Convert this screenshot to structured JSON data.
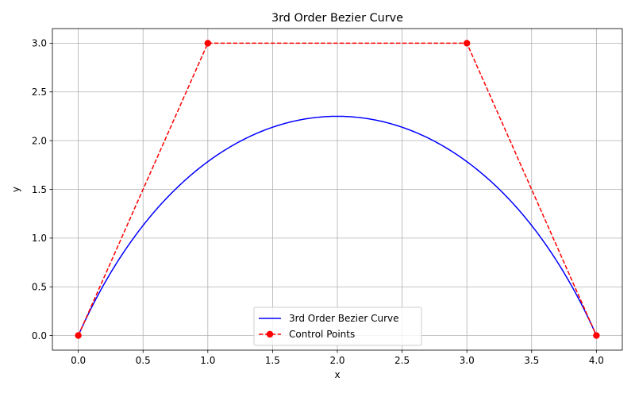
{
  "chart_data": {
    "type": "line",
    "title": "3rd Order Bezier Curve",
    "xlabel": "x",
    "ylabel": "y",
    "xlim": [
      -0.2,
      4.2
    ],
    "ylim": [
      -0.15,
      3.15
    ],
    "xticks": [
      0.0,
      0.5,
      1.0,
      1.5,
      2.0,
      2.5,
      3.0,
      3.5,
      4.0
    ],
    "xtick_labels": [
      "0.0",
      "0.5",
      "1.0",
      "1.5",
      "2.0",
      "2.5",
      "3.0",
      "3.5",
      "4.0"
    ],
    "yticks": [
      0.0,
      0.5,
      1.0,
      1.5,
      2.0,
      2.5,
      3.0
    ],
    "ytick_labels": [
      "0.0",
      "0.5",
      "1.0",
      "1.5",
      "2.0",
      "2.5",
      "3.0"
    ],
    "grid": true,
    "legend_position": "bottom-center",
    "series": [
      {
        "name": "3rd Order Bezier Curve",
        "style": "solid",
        "color": "#0000ff",
        "control_points": [
          [
            0,
            0
          ],
          [
            1,
            3
          ],
          [
            3,
            3
          ],
          [
            4,
            0
          ]
        ]
      },
      {
        "name": "Control Points",
        "style": "dashed-markers",
        "color": "#ff0000",
        "x": [
          0,
          1,
          3,
          4
        ],
        "y": [
          0,
          3,
          3,
          0
        ]
      }
    ]
  }
}
